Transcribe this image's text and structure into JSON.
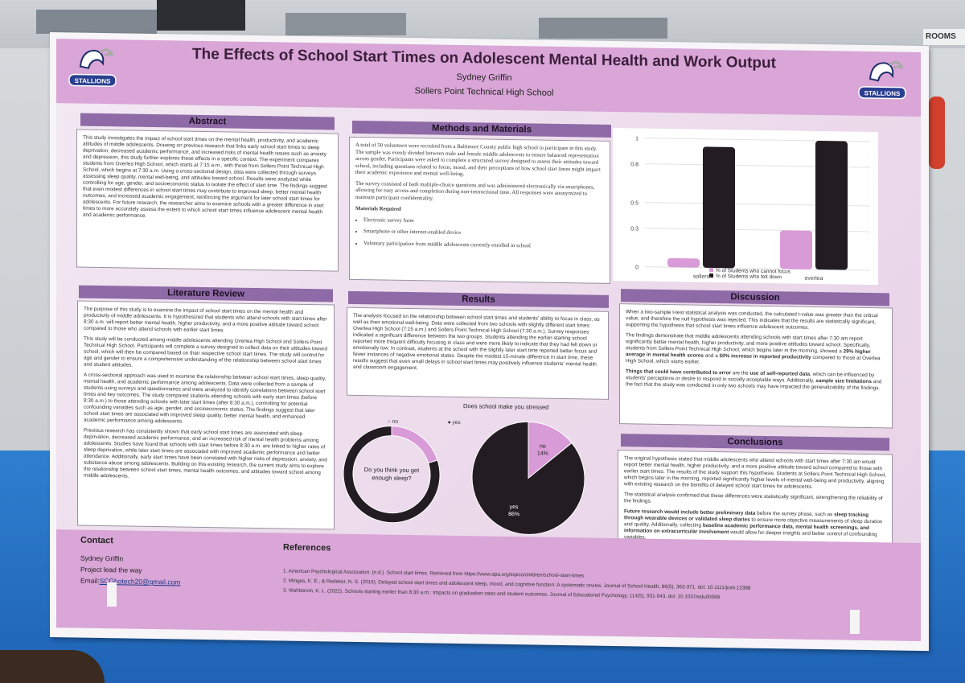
{
  "background": {
    "sign_text": "ROOMS"
  },
  "poster": {
    "title": "The Effects of School Start Times on Adolescent Mental Health and Work Output",
    "author": "Sydney Griffin",
    "school": "Sollers Point Technical High School",
    "logo_text": "STALLIONS",
    "colors": {
      "accent": "#d9a6d7",
      "section_head": "#8e6aa6",
      "dark": "#231c22"
    }
  },
  "abstract": {
    "heading": "Abstract",
    "text": "This study investigates the impact of school start times on the mental health, productivity, and academic attitudes of middle adolescents. Drawing on previous research that links early school start times to sleep deprivation, decreased academic performance, and increased risks of mental health issues such as anxiety and depression, this study further explores these effects in a specific context. The experiment compares students from Overlea High School, which starts at 7:15 a.m., with those from Sollers Point Technical High School, which begins at 7:30 a.m. Using a cross-sectional design, data were collected through surveys assessing sleep quality, mental well-being, and attitudes toward school. Results were analyzed while controlling for age, gender, and socioeconomic status to isolate the effect of start time. The findings suggest that even modest differences in school start times may contribute to improved sleep, better mental health outcomes, and increased academic engagement, reinforcing the argument for later school start times for adolescents. For future research, the researcher aims to examine schools with a greater difference in start times to more accurately assess the extent to which school start times influence adolescent mental health and academic performance."
  },
  "methods": {
    "heading": "Methods and Materials",
    "p1": "A total of 50 volunteers were recruited from a Baltimore County public high school to participate in this study. The sample was evenly divided between male and female middle adolescents to ensure balanced representation across gender. Participants were asked to complete a structured survey designed to assess their attitudes toward school, including questions related to focus, mood, and their perceptions of how school start times might impact their academic experience and mental well-being.",
    "p2": "The survey consisted of both multiple-choice questions and was administered electronically via smartphones, allowing for easy access and completion during non-instructional time. All responses were anonymized to maintain participant confidentiality.",
    "materials_heading": "Materials Required",
    "materials": [
      "Electronic survey form",
      "Smartphone or other internet-enabled device",
      "Voluntary participation from middle adolescents currently enrolled in school"
    ]
  },
  "chart_data": [
    {
      "type": "bar",
      "categories": [
        "sollers",
        "overlea"
      ],
      "series": [
        {
          "name": "% of Students who cannot focus",
          "values": [
            0.07,
            0.3
          ],
          "color": "#d99ad8"
        },
        {
          "name": "% of Students who felt down",
          "values": [
            0.94,
            1.0
          ],
          "color": "#231c22"
        }
      ],
      "yticks": [
        "0",
        "0.3",
        "0.5",
        "0.8",
        "1"
      ],
      "ylim": [
        0,
        1
      ],
      "legend": "bottom"
    },
    {
      "type": "pie",
      "title": "",
      "center_text": "Do you think you get enough sleep?",
      "categories": [
        "no",
        "yes"
      ],
      "values": [
        20,
        80
      ],
      "colors": [
        "#d99ad8",
        "#231c22"
      ],
      "legend": "top"
    },
    {
      "type": "pie",
      "title": "Does school make you stressed",
      "categories": [
        "no",
        "yes"
      ],
      "values": [
        14,
        86
      ],
      "labels": [
        "no\n14%",
        "yes\n86%"
      ],
      "colors": [
        "#d99ad8",
        "#231c22"
      ]
    }
  ],
  "literature": {
    "heading": "Literature Review",
    "p1": "The purpose of this study is to examine the impact of school start times on the mental health and productivity of middle adolescents. It is hypothesized that students who attend schools with start times after 8:30 a.m. will report better mental health, higher productivity, and a more positive attitude toward school compared to those who attend schools with earlier start times.",
    "p2": "This study will be conducted among middle adolescents attending Overlea High School and Sollers Point Technical High School. Participants will complete a survey designed to collect data on their attitudes toward school, which will then be compared based on their respective school start times. The study will control for age and gender to ensure a comprehensive understanding of the relationship between school start times and student attitudes.",
    "p3": "A cross-sectional approach was used to examine the relationship between school start times, sleep quality, mental health, and academic performance among adolescents. Data were collected from a sample of students using surveys and questionnaires and were analyzed to identify correlations between school start times and key outcomes. The study compared students attending schools with early start times (before 8:30 a.m.) to those attending schools with later start times (after 8:30 a.m.), controlling for potential confounding variables such as age, gender, and socioeconomic status. The findings suggest that later school start times are associated with improved sleep quality, better mental health, and enhanced academic performance among adolescents.",
    "p4": "Previous research has consistently shown that early school start times are associated with sleep deprivation, decreased academic performance, and an increased risk of mental health problems among adolescents. Studies have found that schools with start times before 8:30 a.m. are linked to higher rates of sleep deprivation, while later start times are associated with improved academic performance and better attendance. Additionally, early start times have been correlated with higher risks of depression, anxiety, and substance abuse among adolescents. Building on this existing research, the current study aims to explore the relationship between school start times, mental health outcomes, and attitudes toward school among middle adolescents."
  },
  "results": {
    "heading": "Results",
    "text": "The analysis focused on the relationship between school start times and students' ability to focus in class, as well as their emotional well-being. Data were collected from two schools with slightly different start times: Overlea High School (7:15 a.m.) and Sollers Point Technical High School (7:30 a.m.). Survey responses indicated a significant difference between the two groups. Students attending the earlier-starting school reported more frequent difficulty focusing in class and were more likely to indicate that they had felt down or emotionally low. In contrast, students at the school with the slightly later start time reported better focus and fewer instances of negative emotional states. Despite the modest 15-minute difference in start time, these results suggest that even small delays in school start times may positively influence students' mental health and classroom engagement."
  },
  "discussion": {
    "heading": "Discussion",
    "p1": "When a two-sample t-test statistical analysis was conducted, the calculated t-value was greater than the critical value, and therefore the null hypothesis was rejected. This indicates that the results are statistically significant, supporting the hypothesis that school start times influence adolescent outcomes.",
    "p2a": "The findings demonstrate that middle adolescents attending schools with start times after 7:30 am report significantly better mental health, higher productivity, and more positive attitudes toward school. Specifically, students from Sollers Point Technical High School, which begins later in the morning, showed a ",
    "p2b": "29% higher average in mental health scores",
    "p2c": "and a ",
    "p2d": "50% increase in reported productivity",
    "p2e": " compared to those at Overlea High School, which starts earlier.",
    "p3a": "Things that could have contributed to error",
    "p3b": " are the ",
    "p3c": "use of self-reported data",
    "p3d": ", which can be influenced by students' perceptions or desire to respond in socially acceptable ways. Additionally, ",
    "p3e": "sample size limitations",
    "p3f": " and the fact that the study was conducted in only two schools may have impacted the generalizability of the findings."
  },
  "conclusions": {
    "heading": "Conclusions",
    "p1": "The original hypothesis stated that middle adolescents who attend schools with start times after 7:30 am would report better mental health, higher productivity, and a more positive attitude toward school compared to those with earlier start times. The results of the study support this hypothesis. Students at Sollers Point Technical High School, which begins later in the morning, reported significantly higher levels of mental well-being and productivity, aligning with existing research on the benefits of delayed school start times for adolescents.",
    "p2": "The statistical analysis confirmed that these differences were statistically significant, strengthening the reliability of the findings.",
    "p3a": "Future research would include better preliminary data",
    "p3b": " before the survey phase, such as ",
    "p3c": "sleep tracking through wearable devices or validated sleep diaries",
    "p3d": " to ensure more objective measurements of sleep duration and quality. Additionally, collecting ",
    "p3e": "baseline academic performance data, mental health screenings, and information on extracurricular involvement",
    "p3f": " would allow for deeper insights and better control of confounding variables."
  },
  "contact": {
    "heading": "Contact",
    "name": "Sydney Griffin",
    "line2": "Project lead the way",
    "email_label": "Email:",
    "email": "SCGhotech20@gmail.com"
  },
  "references": {
    "heading": "References",
    "items": [
      "1. American Psychological Association. (n.d.). School start times. Retrieved from https://www.apa.org/topics/children/school-start-times",
      "2. Minges, K. E., & Redeker, N. S. (2016). Delayed school start times and adolescent sleep, mood, and cognitive function: A systematic review. Journal of School Health, 86(5), 363-371. doi: 10.1111/josh.12388",
      "3. Wahlstrom, K. L. (2022). Schools starting earlier than 8:30 a.m.: Impacts on graduation rates and student outcomes. Journal of Educational Psychology, 114(5), 931-943. doi: 10.1037/edu00068"
    ]
  }
}
